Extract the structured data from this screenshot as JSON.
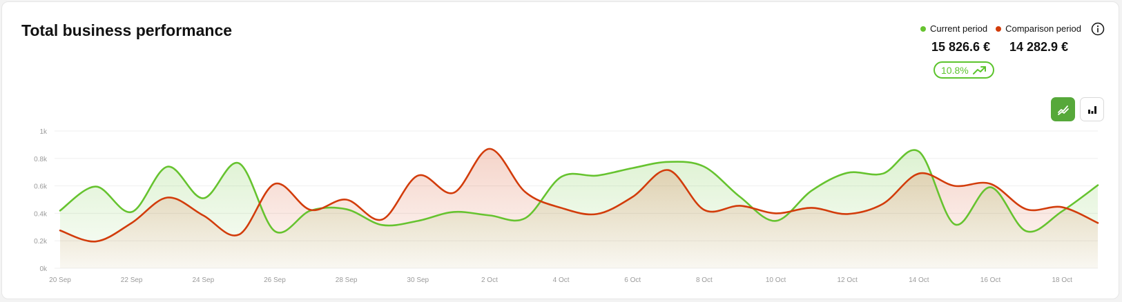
{
  "header": {
    "title": "Total business performance"
  },
  "legend": {
    "current_label": "Current period",
    "comparison_label": "Comparison period",
    "current_total": "15 826.6 €",
    "comparison_total": "14 282.9 €",
    "change_badge": "10.8%"
  },
  "icons": {
    "info": "info-icon",
    "trend": "trend-up-icon",
    "line_toggle": "line-chart-icon",
    "bar_toggle": "bar-chart-icon"
  },
  "colors": {
    "current": "#66c32f",
    "comparison": "#d23c0b",
    "toggle_active": "#56a83a"
  },
  "chart_data": {
    "type": "area",
    "x": [
      "20 Sep",
      "21 Sep",
      "22 Sep",
      "23 Sep",
      "24 Sep",
      "25 Sep",
      "26 Sep",
      "27 Sep",
      "28 Sep",
      "29 Sep",
      "30 Sep",
      "1 Oct",
      "2 Oct",
      "3 Oct",
      "4 Oct",
      "5 Oct",
      "6 Oct",
      "7 Oct",
      "8 Oct",
      "9 Oct",
      "10 Oct",
      "11 Oct",
      "12 Oct",
      "13 Oct",
      "14 Oct",
      "15 Oct",
      "16 Oct",
      "17 Oct",
      "18 Oct",
      "19 Oct"
    ],
    "x_ticks": [
      "20 Sep",
      "22 Sep",
      "24 Sep",
      "26 Sep",
      "28 Sep",
      "30 Sep",
      "2 Oct",
      "4 Oct",
      "6 Oct",
      "8 Oct",
      "10 Oct",
      "12 Oct",
      "14 Oct",
      "16 Oct",
      "18 Oct"
    ],
    "y_ticks": [
      "0k",
      "0.2k",
      "0.4k",
      "0.6k",
      "0.8k",
      "1k"
    ],
    "ylim": [
      0,
      1000
    ],
    "grid": true,
    "series": [
      {
        "name": "Current period",
        "values": [
          420,
          595,
          410,
          740,
          510,
          765,
          270,
          420,
          430,
          315,
          345,
          410,
          385,
          365,
          665,
          675,
          730,
          775,
          740,
          520,
          345,
          565,
          695,
          690,
          850,
          320,
          590,
          270,
          415,
          605
        ]
      },
      {
        "name": "Comparison period",
        "values": [
          275,
          195,
          330,
          515,
          385,
          245,
          615,
          425,
          500,
          355,
          675,
          550,
          870,
          555,
          440,
          395,
          520,
          715,
          425,
          455,
          400,
          440,
          395,
          470,
          690,
          600,
          615,
          430,
          445,
          330
        ]
      }
    ]
  }
}
